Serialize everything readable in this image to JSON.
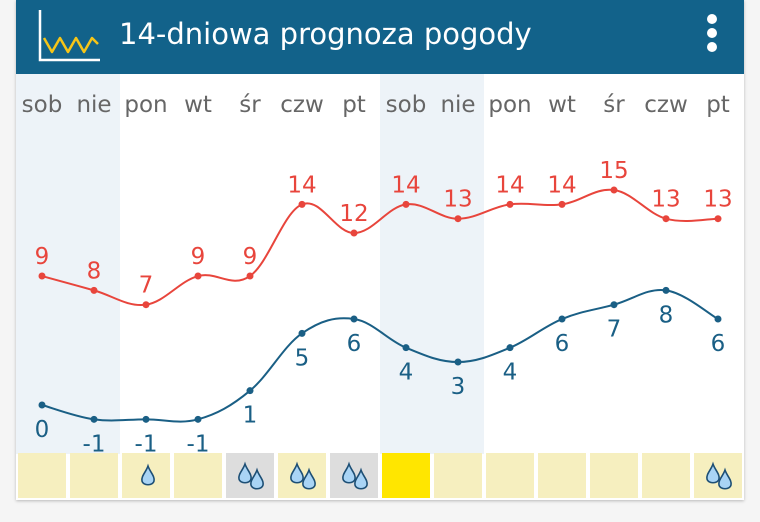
{
  "app": {
    "title": "14-dniowa prognoza pogody",
    "icon": "line-chart-icon",
    "menu_icon": "more-vertical-icon",
    "colors": {
      "toolbar": "#12628a",
      "max_line": "#e8453c",
      "min_line": "#1a5f85",
      "weekend": "#edf3f8",
      "strip": "#f6efbf",
      "today": "#ffe600",
      "rain_bg": "#dddddd"
    }
  },
  "chart_data": {
    "type": "line",
    "categories": [
      "sob",
      "nie",
      "pon",
      "wt",
      "śr",
      "czw",
      "pt",
      "sob",
      "nie",
      "pon",
      "wt",
      "śr",
      "czw",
      "pt"
    ],
    "series": [
      {
        "values": [
          9,
          8,
          7,
          9,
          9,
          14,
          12,
          14,
          13,
          14,
          14,
          15,
          13,
          13
        ]
      },
      {
        "values": [
          0,
          -1,
          -1,
          -1,
          1,
          5,
          6,
          4,
          3,
          4,
          6,
          7,
          8,
          6
        ]
      }
    ],
    "weekend_indices": [
      0,
      7
    ],
    "today_index": 7,
    "precipitation": [
      "none",
      "none",
      "drop",
      "none",
      "drops",
      "drops",
      "drops",
      "none",
      "none",
      "none",
      "none",
      "none",
      "none",
      "drops"
    ],
    "precipitation_shaded": [
      false,
      false,
      false,
      false,
      true,
      false,
      true,
      false,
      false,
      false,
      false,
      false,
      false,
      false
    ]
  }
}
